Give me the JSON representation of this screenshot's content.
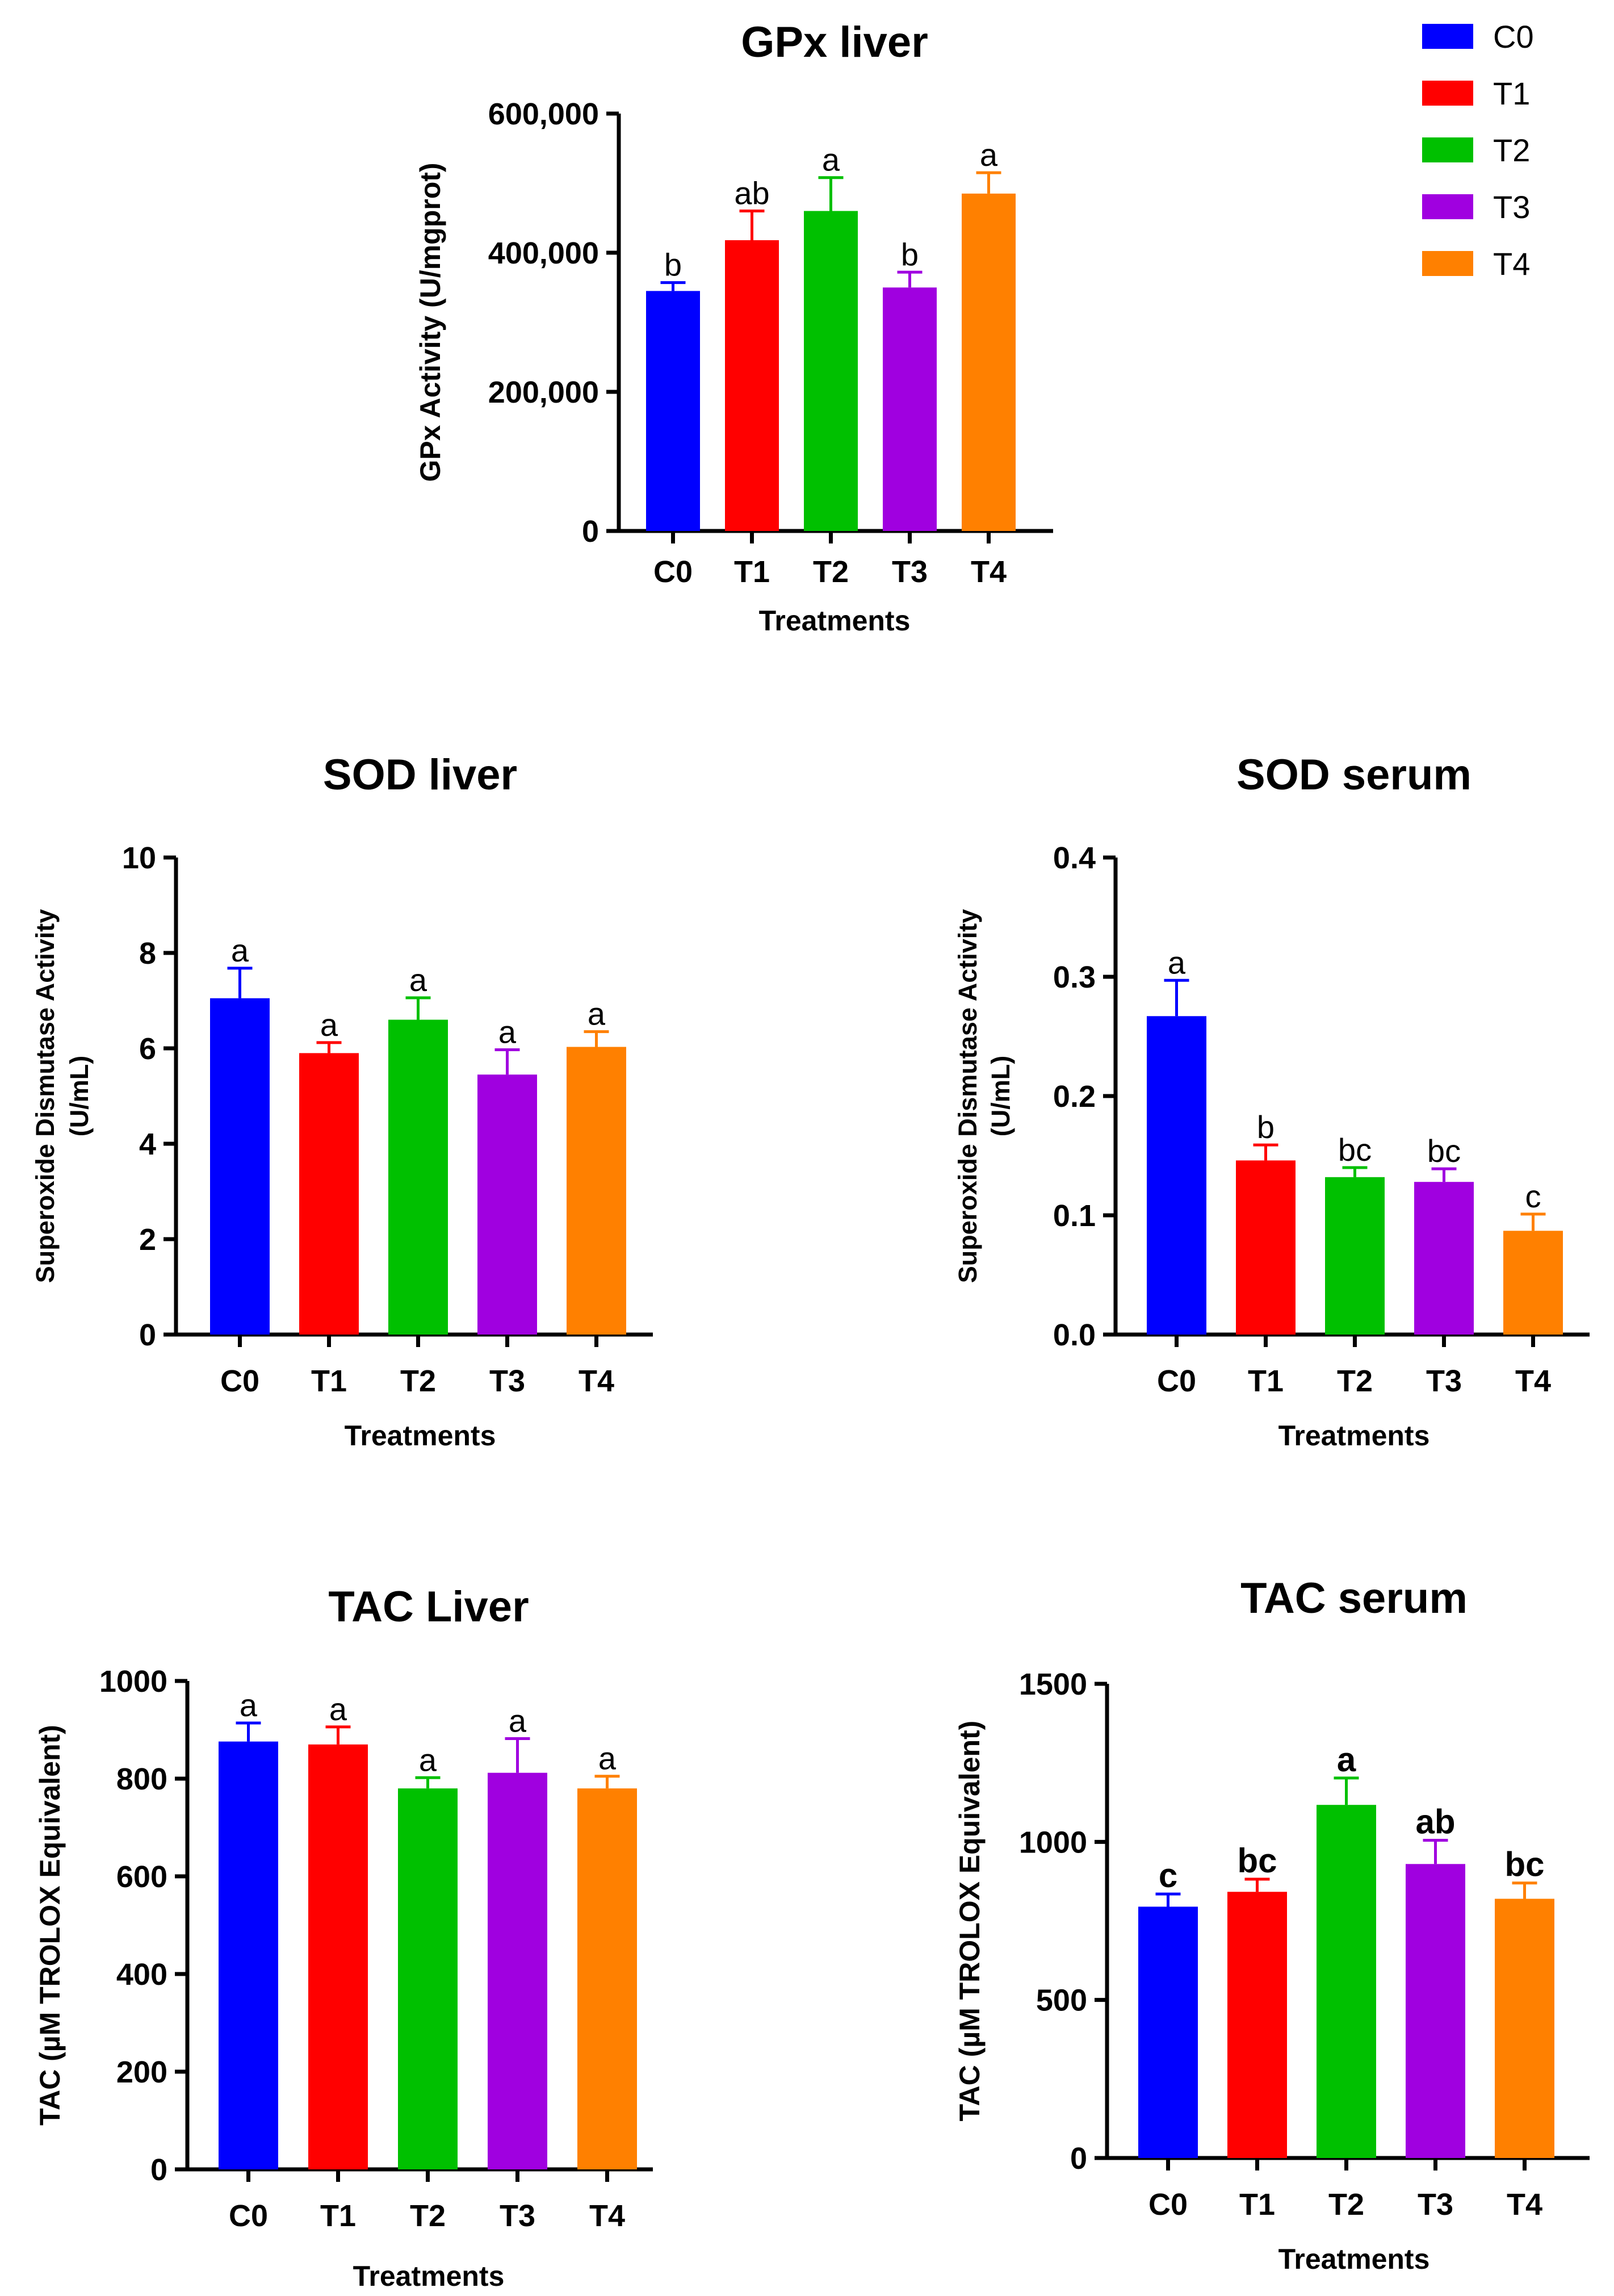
{
  "legend": {
    "entries": [
      {
        "label": "C0",
        "color": "#0000FF"
      },
      {
        "label": "T1",
        "color": "#FF0000"
      },
      {
        "label": "T2",
        "color": "#00C000"
      },
      {
        "label": "T3",
        "color": "#A000E0"
      },
      {
        "label": "T4",
        "color": "#FF8000"
      }
    ]
  },
  "chart_data": [
    {
      "id": "gpx-liver",
      "type": "bar",
      "title": "GPx liver",
      "xlabel": "Treatments",
      "ylabel": [
        "GPx Activity (U/mgprot)"
      ],
      "categories": [
        "C0",
        "T1",
        "T2",
        "T3",
        "T4"
      ],
      "values": [
        345000,
        418000,
        460000,
        350000,
        485000
      ],
      "errors": [
        12000,
        42000,
        48000,
        22000,
        30000
      ],
      "letters": [
        "b",
        "ab",
        "a",
        "b",
        "a"
      ],
      "letters_bold": false,
      "ylim": [
        0,
        600000
      ],
      "yticks": [
        0,
        200000,
        400000,
        600000
      ],
      "ytick_labels": [
        "0",
        "200,000",
        "400,000",
        "600,000"
      ]
    },
    {
      "id": "sod-liver",
      "type": "bar",
      "title": "SOD liver",
      "xlabel": "Treatments",
      "ylabel": [
        "Superoxide Dismutase Activity",
        "(U/mL)"
      ],
      "categories": [
        "C0",
        "T1",
        "T2",
        "T3",
        "T4"
      ],
      "values": [
        7.05,
        5.9,
        6.6,
        5.45,
        6.03
      ],
      "errors": [
        0.63,
        0.22,
        0.46,
        0.52,
        0.32
      ],
      "letters": [
        "a",
        "a",
        "a",
        "a",
        "a"
      ],
      "letters_bold": false,
      "ylim": [
        0,
        10
      ],
      "yticks": [
        0,
        2,
        4,
        6,
        8,
        10
      ],
      "ytick_labels": [
        "0",
        "2",
        "4",
        "6",
        "8",
        "10"
      ]
    },
    {
      "id": "sod-serum",
      "type": "bar",
      "title": "SOD serum",
      "xlabel": "Treatments",
      "ylabel": [
        "Superoxide Dismutase Activity",
        "(U/mL)"
      ],
      "categories": [
        "C0",
        "T1",
        "T2",
        "T3",
        "T4"
      ],
      "values": [
        0.267,
        0.146,
        0.132,
        0.128,
        0.087
      ],
      "errors": [
        0.03,
        0.013,
        0.008,
        0.011,
        0.014
      ],
      "letters": [
        "a",
        "b",
        "bc",
        "bc",
        "c"
      ],
      "letters_bold": false,
      "ylim": [
        0,
        0.4
      ],
      "yticks": [
        0,
        0.1,
        0.2,
        0.3,
        0.4
      ],
      "ytick_labels": [
        "0.0",
        "0.1",
        "0.2",
        "0.3",
        "0.4"
      ]
    },
    {
      "id": "tac-liver",
      "type": "bar",
      "title": "TAC Liver",
      "xlabel": "Treatments",
      "ylabel": [
        "TAC (µM TROLOX Equivalent)"
      ],
      "categories": [
        "C0",
        "T1",
        "T2",
        "T3",
        "T4"
      ],
      "values": [
        876,
        870,
        780,
        812,
        780
      ],
      "errors": [
        38,
        36,
        22,
        70,
        25
      ],
      "letters": [
        "a",
        "a",
        "a",
        "a",
        "a"
      ],
      "letters_bold": false,
      "ylim": [
        0,
        1000
      ],
      "yticks": [
        0,
        200,
        400,
        600,
        800,
        1000
      ],
      "ytick_labels": [
        "0",
        "200",
        "400",
        "600",
        "800",
        "1000"
      ]
    },
    {
      "id": "tac-serum",
      "type": "bar",
      "title": "TAC serum",
      "xlabel": "Treatments",
      "ylabel": [
        "TAC (µM TROLOX Equivalent)"
      ],
      "categories": [
        "C0",
        "T1",
        "T2",
        "T3",
        "T4"
      ],
      "values": [
        795,
        842,
        1117,
        930,
        820
      ],
      "errors": [
        40,
        40,
        85,
        75,
        50
      ],
      "letters": [
        "c",
        "bc",
        "a",
        "ab",
        "bc"
      ],
      "letters_bold": true,
      "ylim": [
        0,
        1500
      ],
      "yticks": [
        0,
        500,
        1000,
        1500
      ],
      "ytick_labels": [
        "0",
        "500",
        "1000",
        "1500"
      ]
    }
  ]
}
